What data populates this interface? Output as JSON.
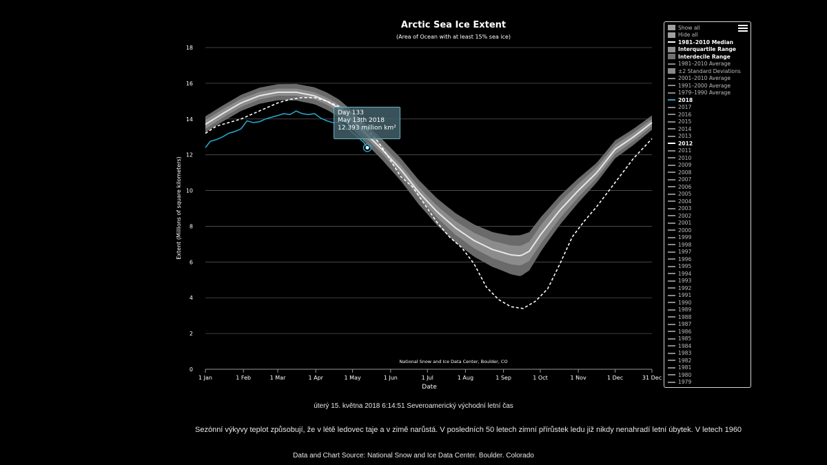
{
  "chart_data": {
    "type": "line",
    "title": "Arctic Sea Ice Extent",
    "subtitle": "(Area of Ocean with at least 15% sea ice)",
    "xlabel": "Date",
    "ylabel": "Extent (Millions of square kilometers)",
    "ylim": [
      0,
      18
    ],
    "y_ticks": [
      0,
      2,
      4,
      6,
      8,
      10,
      12,
      14,
      16,
      18
    ],
    "xlim": [
      1,
      365
    ],
    "x_ticks": [
      {
        "day": 1,
        "label": "1 Jan"
      },
      {
        "day": 32,
        "label": "1 Feb"
      },
      {
        "day": 60,
        "label": "1 Mar"
      },
      {
        "day": 91,
        "label": "1 Apr"
      },
      {
        "day": 121,
        "label": "1 May"
      },
      {
        "day": 152,
        "label": "1 Jun"
      },
      {
        "day": 182,
        "label": "1 Jul"
      },
      {
        "day": 213,
        "label": "1 Aug"
      },
      {
        "day": 244,
        "label": "1 Sep"
      },
      {
        "day": 274,
        "label": "1 Oct"
      },
      {
        "day": 305,
        "label": "1 Nov"
      },
      {
        "day": 335,
        "label": "1 Dec"
      },
      {
        "day": 365,
        "label": "31 Dec"
      }
    ],
    "grid": true,
    "legend_position": "right",
    "credit": "National Snow and Ice Data Center, Boulder, CO",
    "median_1981_2010": {
      "name": "1981–2010 Median",
      "x": [
        1,
        15,
        30,
        45,
        60,
        75,
        90,
        100,
        110,
        120,
        133,
        145,
        160,
        175,
        190,
        205,
        220,
        235,
        250,
        258,
        265,
        275,
        290,
        305,
        320,
        335,
        350,
        365
      ],
      "y": [
        13.7,
        14.3,
        14.9,
        15.3,
        15.5,
        15.5,
        15.3,
        15.0,
        14.6,
        14.0,
        13.1,
        12.3,
        11.2,
        9.9,
        8.8,
        7.9,
        7.2,
        6.7,
        6.4,
        6.35,
        6.6,
        7.6,
        8.9,
        10.0,
        11.0,
        12.3,
        13.0,
        13.8
      ]
    },
    "interquartile_halfwidth": {
      "x": [
        1,
        60,
        120,
        180,
        240,
        258,
        280,
        320,
        365
      ],
      "y": [
        0.25,
        0.2,
        0.2,
        0.3,
        0.5,
        0.55,
        0.5,
        0.3,
        0.2
      ]
    },
    "interdecile_halfwidth": {
      "x": [
        1,
        60,
        120,
        180,
        240,
        258,
        280,
        320,
        365
      ],
      "y": [
        0.45,
        0.45,
        0.5,
        0.7,
        1.0,
        1.15,
        0.9,
        0.55,
        0.4
      ]
    },
    "series": [
      {
        "name": "2018",
        "color": "#29a3c9",
        "x": [
          1,
          5,
          10,
          15,
          20,
          25,
          30,
          35,
          40,
          45,
          50,
          55,
          60,
          65,
          70,
          75,
          80,
          85,
          90,
          95,
          100,
          105,
          110,
          115,
          120,
          125,
          130,
          133
        ],
        "y": [
          12.4,
          12.75,
          12.85,
          13.0,
          13.2,
          13.3,
          13.45,
          13.9,
          13.8,
          13.85,
          14.0,
          14.1,
          14.2,
          14.3,
          14.25,
          14.45,
          14.3,
          14.25,
          14.3,
          14.05,
          13.9,
          13.8,
          13.8,
          13.6,
          13.3,
          13.0,
          12.7,
          12.393
        ]
      },
      {
        "name": "2012",
        "color": "#ffffff",
        "dashed": true,
        "x": [
          1,
          10,
          20,
          30,
          40,
          50,
          60,
          70,
          80,
          90,
          100,
          110,
          120,
          130,
          140,
          150,
          160,
          170,
          180,
          190,
          200,
          210,
          220,
          230,
          240,
          250,
          260,
          270,
          280,
          290,
          300,
          310,
          320,
          330,
          340,
          350,
          365
        ],
        "y": [
          13.2,
          13.6,
          13.8,
          14.0,
          14.3,
          14.6,
          14.9,
          15.1,
          15.2,
          15.2,
          15.0,
          14.7,
          14.3,
          13.6,
          12.9,
          11.9,
          10.8,
          10.2,
          9.2,
          8.2,
          7.4,
          6.8,
          5.9,
          4.6,
          3.9,
          3.5,
          3.4,
          3.8,
          4.5,
          5.9,
          7.4,
          8.3,
          9.1,
          10.0,
          10.9,
          11.8,
          12.9
        ]
      }
    ],
    "tooltip": {
      "line1": "Day 133",
      "line2": "May 13th 2018",
      "line3": "12.393 million km²",
      "day": 133,
      "value": 12.393
    }
  },
  "legend": {
    "menu_icon": "hamburger-menu-icon",
    "items": [
      {
        "label": "Show all",
        "kind": "box",
        "color": "#a0a0a0"
      },
      {
        "label": "Hide all",
        "kind": "box",
        "color": "#a0a0a0"
      },
      {
        "label": "1981–2010 Median",
        "kind": "line",
        "color": "#ffffff",
        "bold": true
      },
      {
        "label": "Interquartile Range",
        "kind": "box",
        "color": "#909090",
        "bold": true
      },
      {
        "label": "Interdecile Range",
        "kind": "box",
        "color": "#707070",
        "bold": true
      },
      {
        "label": "1981–2010 Average",
        "kind": "line",
        "color": "#8a8a8a"
      },
      {
        "label": "±2 Standard Deviations",
        "kind": "box",
        "color": "#8a8a8a"
      },
      {
        "label": "2001–2010 Average",
        "kind": "line",
        "color": "#8a8a8a"
      },
      {
        "label": "1991–2000 Average",
        "kind": "line",
        "color": "#8a8a8a"
      },
      {
        "label": "1979–1990 Average",
        "kind": "line",
        "color": "#8a8a8a"
      },
      {
        "label": "2018",
        "kind": "line",
        "color": "#29a3c9",
        "bold": true
      },
      {
        "label": "2017",
        "kind": "line",
        "color": "#8a8a8a"
      },
      {
        "label": "2016",
        "kind": "line",
        "color": "#8a8a8a"
      },
      {
        "label": "2015",
        "kind": "line",
        "color": "#8a8a8a"
      },
      {
        "label": "2014",
        "kind": "line",
        "color": "#8a8a8a"
      },
      {
        "label": "2013",
        "kind": "line",
        "color": "#8a8a8a"
      },
      {
        "label": "2012",
        "kind": "dash",
        "color": "#ffffff",
        "bold": true
      },
      {
        "label": "2011",
        "kind": "line",
        "color": "#8a8a8a"
      },
      {
        "label": "2010",
        "kind": "line",
        "color": "#8a8a8a"
      },
      {
        "label": "2009",
        "kind": "line",
        "color": "#8a8a8a"
      },
      {
        "label": "2008",
        "kind": "line",
        "color": "#8a8a8a"
      },
      {
        "label": "2007",
        "kind": "line",
        "color": "#8a8a8a"
      },
      {
        "label": "2006",
        "kind": "line",
        "color": "#8a8a8a"
      },
      {
        "label": "2005",
        "kind": "line",
        "color": "#8a8a8a"
      },
      {
        "label": "2004",
        "kind": "line",
        "color": "#8a8a8a"
      },
      {
        "label": "2003",
        "kind": "line",
        "color": "#8a8a8a"
      },
      {
        "label": "2002",
        "kind": "line",
        "color": "#8a8a8a"
      },
      {
        "label": "2001",
        "kind": "line",
        "color": "#8a8a8a"
      },
      {
        "label": "2000",
        "kind": "line",
        "color": "#8a8a8a"
      },
      {
        "label": "1999",
        "kind": "line",
        "color": "#8a8a8a"
      },
      {
        "label": "1998",
        "kind": "line",
        "color": "#8a8a8a"
      },
      {
        "label": "1997",
        "kind": "line",
        "color": "#8a8a8a"
      },
      {
        "label": "1996",
        "kind": "line",
        "color": "#8a8a8a"
      },
      {
        "label": "1995",
        "kind": "line",
        "color": "#8a8a8a"
      },
      {
        "label": "1994",
        "kind": "line",
        "color": "#8a8a8a"
      },
      {
        "label": "1993",
        "kind": "line",
        "color": "#8a8a8a"
      },
      {
        "label": "1992",
        "kind": "line",
        "color": "#8a8a8a"
      },
      {
        "label": "1991",
        "kind": "line",
        "color": "#8a8a8a"
      },
      {
        "label": "1990",
        "kind": "line",
        "color": "#8a8a8a"
      },
      {
        "label": "1989",
        "kind": "line",
        "color": "#8a8a8a"
      },
      {
        "label": "1988",
        "kind": "line",
        "color": "#8a8a8a"
      },
      {
        "label": "1987",
        "kind": "line",
        "color": "#8a8a8a"
      },
      {
        "label": "1986",
        "kind": "line",
        "color": "#8a8a8a"
      },
      {
        "label": "1985",
        "kind": "line",
        "color": "#8a8a8a"
      },
      {
        "label": "1984",
        "kind": "line",
        "color": "#8a8a8a"
      },
      {
        "label": "1983",
        "kind": "line",
        "color": "#8a8a8a"
      },
      {
        "label": "1982",
        "kind": "line",
        "color": "#8a8a8a"
      },
      {
        "label": "1981",
        "kind": "line",
        "color": "#8a8a8a"
      },
      {
        "label": "1980",
        "kind": "line",
        "color": "#8a8a8a"
      },
      {
        "label": "1979",
        "kind": "line",
        "color": "#8a8a8a"
      }
    ]
  },
  "footer": {
    "timestamp": "úterý 15. května 2018 6:14:51 Severoamerický východní letní čas",
    "description": "Sezónní výkyvy teplot způsobují, že v létě ledovec taje a v zimě narůstá. V posledních 50 letech zimní přírůstek ledu již nikdy nenahradí letní úbytek. V letech 1960",
    "source": "Data and Chart Source: National Snow and Ice Data Center. Boulder. Colorado"
  },
  "colors": {
    "background": "#000000",
    "grid": "#555555",
    "interdecile": "#6a6a6a",
    "interquartile": "#8c8c8c",
    "median": "#e8e8e8",
    "accent_2018": "#29a3c9"
  }
}
